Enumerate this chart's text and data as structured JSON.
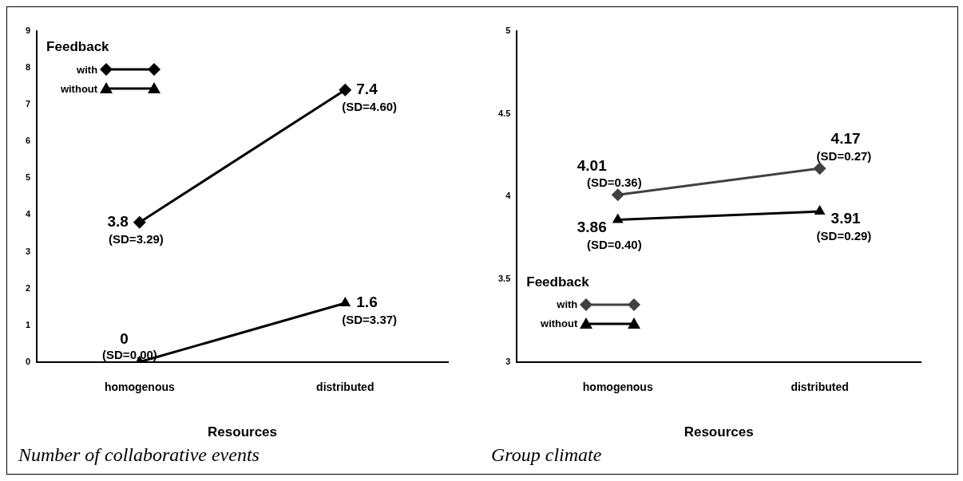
{
  "chart_data": [
    {
      "type": "line",
      "title": "Number of collaborative events",
      "xlabel": "Resources",
      "legend_title": "Feedback",
      "legend": "top left",
      "categories": [
        "homogenous",
        "distributed"
      ],
      "ylim": [
        0,
        9
      ],
      "yticks": [
        0,
        1,
        2,
        3,
        4,
        5,
        6,
        7,
        8,
        9
      ],
      "grid": false,
      "data_labels": true,
      "series": [
        {
          "name": "with",
          "color": "#000000",
          "marker": "diamond",
          "values": [
            3.8,
            7.4
          ]
        },
        {
          "name": "without",
          "color": "#000000",
          "marker": "triangle",
          "values": [
            0,
            1.6
          ]
        }
      ],
      "annotations": [
        {
          "text": "(SD=3.29)",
          "x": "homogenous",
          "y": 3.8
        },
        {
          "text": "(SD=4.60)",
          "x": "distributed",
          "y": 7.4
        },
        {
          "text": "(SD=0.00)",
          "x": "homogenous",
          "y": 0
        },
        {
          "text": "(SD=3.37)",
          "x": "distributed",
          "y": 1.6
        }
      ]
    },
    {
      "type": "line",
      "title": "Group climate",
      "xlabel": "Resources",
      "legend_title": "Feedback",
      "legend": "bottom left",
      "categories": [
        "homogenous",
        "distributed"
      ],
      "ylim": [
        3,
        5
      ],
      "yticks": [
        3,
        3.5,
        4,
        4.5,
        5
      ],
      "grid": false,
      "data_labels": true,
      "series": [
        {
          "name": "with",
          "color": "#404040",
          "marker": "diamond",
          "values": [
            4.01,
            4.17
          ]
        },
        {
          "name": "without",
          "color": "#000000",
          "marker": "triangle",
          "values": [
            3.86,
            3.91
          ]
        }
      ],
      "annotations": [
        {
          "text": "(SD=0.36)",
          "x": "homogenous",
          "y": 4.01
        },
        {
          "text": "(SD=0.27)",
          "x": "distributed",
          "y": 4.17
        },
        {
          "text": "(SD=0.40)",
          "x": "homogenous",
          "y": 3.86
        },
        {
          "text": "(SD=0.29)",
          "x": "distributed",
          "y": 3.91
        }
      ]
    }
  ]
}
